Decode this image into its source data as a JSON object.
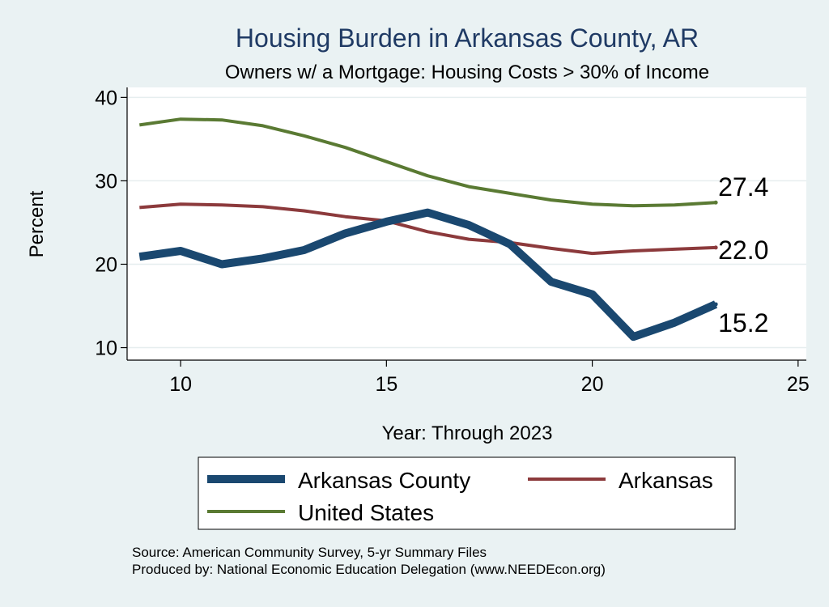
{
  "chart_data": {
    "type": "line",
    "title": "Housing Burden in Arkansas County, AR",
    "subtitle": "Owners w/ a Mortgage: Housing Costs > 30% of Income",
    "xlabel": "Year: Through 2023",
    "ylabel": "Percent",
    "xlim": [
      8.7,
      25.2
    ],
    "ylim": [
      8.5,
      41.2
    ],
    "xticks": [
      10,
      15,
      20,
      25
    ],
    "yticks": [
      10,
      20,
      30,
      40
    ],
    "x": [
      9,
      10,
      11,
      12,
      13,
      14,
      15,
      16,
      17,
      18,
      19,
      20,
      21,
      22,
      23
    ],
    "series": [
      {
        "name": "United States",
        "color": "#5a7a33",
        "values": [
          36.7,
          37.4,
          37.3,
          36.6,
          35.4,
          34.0,
          32.3,
          30.6,
          29.3,
          28.5,
          27.7,
          27.2,
          27.0,
          27.1,
          27.4
        ],
        "end_label": "27.4"
      },
      {
        "name": "Arkansas",
        "color": "#8c3a3c",
        "values": [
          26.8,
          27.2,
          27.1,
          26.9,
          26.4,
          25.7,
          25.2,
          23.9,
          23.0,
          22.6,
          21.9,
          21.3,
          21.6,
          21.8,
          22.0
        ],
        "end_label": "22.0"
      },
      {
        "name": "Arkansas County",
        "color": "#1a4870",
        "values": [
          20.9,
          21.6,
          20.0,
          20.7,
          21.7,
          23.7,
          25.1,
          26.2,
          24.7,
          22.4,
          17.9,
          16.4,
          11.3,
          13.0,
          15.2
        ],
        "end_label": "15.2"
      }
    ],
    "legend": {
      "position": "bottom",
      "items": [
        "Arkansas County",
        "Arkansas",
        "United States"
      ]
    }
  },
  "source": {
    "line1": "Source: American Community Survey, 5-yr Summary Files",
    "line2": "Produced by: National Economic Education Delegation (www.NEEDEcon.org)"
  }
}
